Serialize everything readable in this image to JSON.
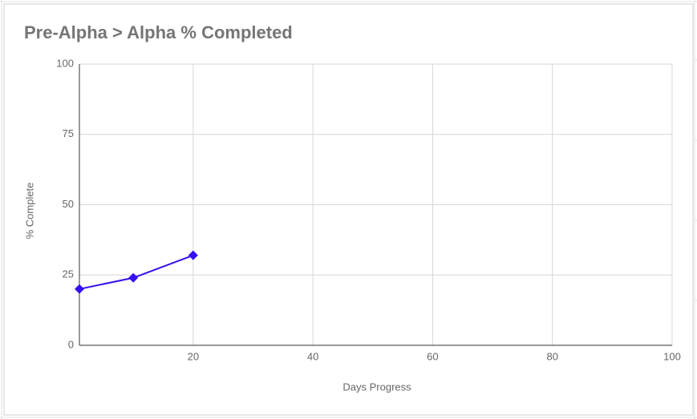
{
  "chart_data": {
    "type": "line",
    "title": "Pre-Alpha > Alpha % Completed",
    "x_label": "Days Progress",
    "y_label": "% Complete",
    "series": [
      {
        "name": "% Complete",
        "color": "#3311ee",
        "x": [
          1,
          10,
          20
        ],
        "values": [
          20,
          24,
          32
        ]
      }
    ],
    "xlim": [
      1,
      100
    ],
    "xticks": [
      20,
      40,
      60,
      80,
      100
    ],
    "ylim": [
      0,
      100
    ],
    "yticks": [
      0,
      25,
      50,
      75,
      100
    ],
    "grid": true
  }
}
